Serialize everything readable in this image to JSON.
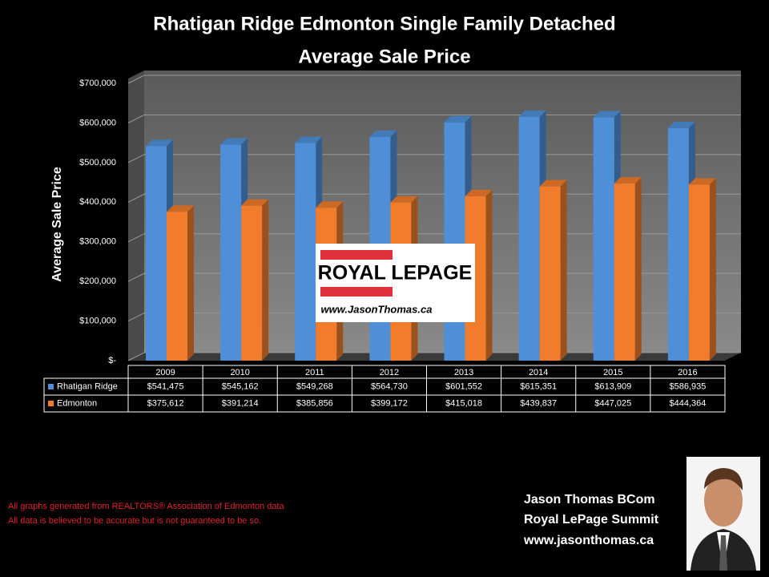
{
  "chart_data": {
    "type": "bar3d",
    "title": "Rhatigan Ridge Edmonton Single Family Detached",
    "subtitle": "Average Sale Price",
    "y_label": "Average Sale Price",
    "categories": [
      "2009",
      "2010",
      "2011",
      "2012",
      "2013",
      "2014",
      "2015",
      "2016"
    ],
    "series": [
      {
        "name": "Rhatigan Ridge",
        "color": "#4f8fd8",
        "values": [
          541475,
          545162,
          549268,
          564730,
          601552,
          615351,
          613909,
          586935
        ],
        "value_labels": [
          "$541,475",
          "$545,162",
          "$549,268",
          "$564,730",
          "$601,552",
          "$615,351",
          "$613,909",
          "$586,935"
        ]
      },
      {
        "name": "Edmonton",
        "color": "#f07c2c",
        "values": [
          375612,
          391214,
          385856,
          399172,
          415018,
          439837,
          447025,
          444364
        ],
        "value_labels": [
          "$375,612",
          "$391,214",
          "$385,856",
          "$399,172",
          "$415,018",
          "$439,837",
          "$447,025",
          "$444,364"
        ]
      }
    ],
    "ylim": [
      0,
      700000
    ],
    "yticks": [
      {
        "value": 0,
        "label": "$-"
      },
      {
        "value": 100000,
        "label": "$100,000"
      },
      {
        "value": 200000,
        "label": "$200,000"
      },
      {
        "value": 300000,
        "label": "$300,000"
      },
      {
        "value": 400000,
        "label": "$400,000"
      },
      {
        "value": 500000,
        "label": "$500,000"
      },
      {
        "value": 600000,
        "label": "$600,000"
      },
      {
        "value": 700000,
        "label": "$700,000"
      }
    ],
    "grid": true
  },
  "logo": {
    "brand": "ROYAL LEPAGE",
    "url": "www.JasonThomas.ca"
  },
  "contact": {
    "name": "Jason Thomas BCom",
    "office": "Royal LePage Summit",
    "website": "www.jasonthomas.ca"
  },
  "footer": {
    "line1": "All graphs generated from REALTORS® Association of Edmonton data",
    "line2": "All data is believed to be accurate but is not guaranteed to be so."
  }
}
